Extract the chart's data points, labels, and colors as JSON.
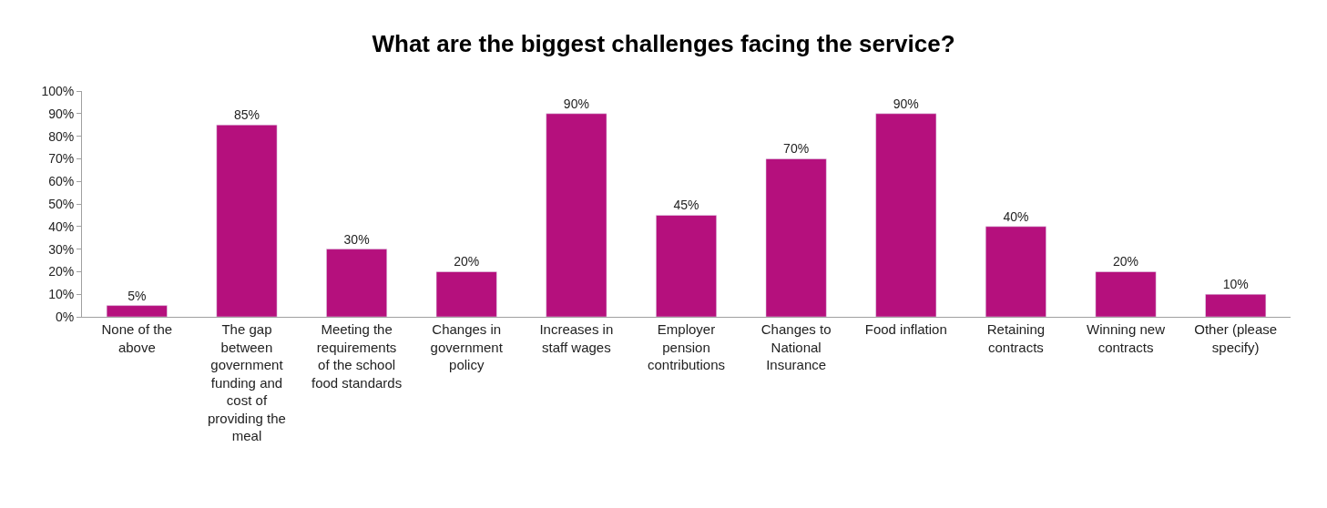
{
  "chart_data": {
    "type": "bar",
    "title": "What are the biggest challenges facing the service?",
    "categories": [
      "None of the above",
      "The gap between government funding and cost of providing the meal",
      "Meeting the requirements of the school food standards",
      "Changes in government policy",
      "Increases in staff wages",
      "Employer pension contributions",
      "Changes to National Insurance",
      "Food inflation",
      "Retaining contracts",
      "Winning new contracts",
      "Other (please specify)"
    ],
    "values": [
      5,
      85,
      30,
      20,
      90,
      45,
      70,
      90,
      40,
      20,
      10
    ],
    "value_labels": [
      "5%",
      "85%",
      "30%",
      "20%",
      "90%",
      "45%",
      "70%",
      "90%",
      "40%",
      "20%",
      "10%"
    ],
    "color": "#b5107d",
    "ylim": [
      0,
      100
    ],
    "yticks": [
      {
        "value": 0,
        "label": "0%"
      },
      {
        "value": 10,
        "label": "10%"
      },
      {
        "value": 20,
        "label": "20%"
      },
      {
        "value": 30,
        "label": "30%"
      },
      {
        "value": 40,
        "label": "40%"
      },
      {
        "value": 50,
        "label": "50%"
      },
      {
        "value": 60,
        "label": "60%"
      },
      {
        "value": 70,
        "label": "70%"
      },
      {
        "value": 80,
        "label": "80%"
      },
      {
        "value": 90,
        "label": "90%"
      },
      {
        "value": 100,
        "label": "100%"
      }
    ],
    "legend": false
  }
}
